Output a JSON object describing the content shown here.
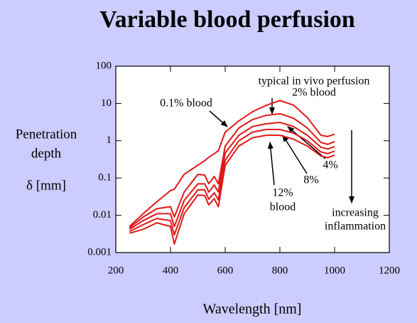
{
  "chart_data": {
    "type": "line",
    "title": "Variable blood perfusion",
    "ylabel": [
      "Penetration",
      "depth",
      "δ [mm]"
    ],
    "xlabel": "Wavelength [nm]",
    "x": [
      250,
      300,
      350,
      400,
      414,
      450,
      500,
      525,
      540,
      560,
      575,
      600,
      650,
      700,
      750,
      800,
      850,
      900,
      950,
      975,
      1000
    ],
    "series": [
      {
        "name": "0.1% blood",
        "color": "#e01818",
        "values": [
          0.005,
          0.011,
          0.023,
          0.046,
          0.05,
          0.126,
          0.22,
          0.29,
          0.36,
          0.45,
          0.54,
          1.7,
          3.4,
          6,
          8.9,
          12,
          9,
          4.2,
          1.4,
          1.3,
          1.5
        ]
      },
      {
        "name": "2% blood",
        "color": "#e01818",
        "values": [
          0.0046,
          0.009,
          0.015,
          0.017,
          0.009,
          0.042,
          0.125,
          0.12,
          0.07,
          0.11,
          0.07,
          0.72,
          2.2,
          3.7,
          4.8,
          5.3,
          4.0,
          2.2,
          0.9,
          0.8,
          0.95
        ]
      },
      {
        "name": "4%",
        "color": "#e01818",
        "values": [
          0.0042,
          0.0072,
          0.011,
          0.011,
          0.005,
          0.025,
          0.07,
          0.07,
          0.042,
          0.065,
          0.042,
          0.47,
          1.4,
          2.4,
          2.85,
          3.1,
          2.4,
          1.4,
          0.67,
          0.6,
          0.7
        ]
      },
      {
        "name": "8%",
        "color": "#e01818",
        "values": [
          0.0037,
          0.0056,
          0.0082,
          0.0072,
          0.003,
          0.016,
          0.048,
          0.048,
          0.027,
          0.04,
          0.026,
          0.3,
          1.0,
          1.7,
          2.0,
          2.0,
          1.6,
          1.0,
          0.5,
          0.45,
          0.53
        ]
      },
      {
        "name": "12%",
        "color": "#e01818",
        "values": [
          0.0033,
          0.0042,
          0.0063,
          0.005,
          0.0017,
          0.011,
          0.035,
          0.034,
          0.019,
          0.028,
          0.017,
          0.22,
          0.72,
          1.2,
          1.4,
          1.4,
          1.1,
          0.72,
          0.39,
          0.35,
          0.41
        ]
      }
    ],
    "xlim": [
      200,
      1200
    ],
    "xticks": [
      200,
      400,
      600,
      800,
      1000,
      1200
    ],
    "ylim": [
      0.001,
      100
    ],
    "yticks": [
      0.001,
      0.01,
      0.1,
      1,
      10,
      100
    ],
    "yscale": "log",
    "annotations": [
      "typical in vivo perfusion",
      "blood",
      "increasing",
      "inflammation"
    ]
  }
}
